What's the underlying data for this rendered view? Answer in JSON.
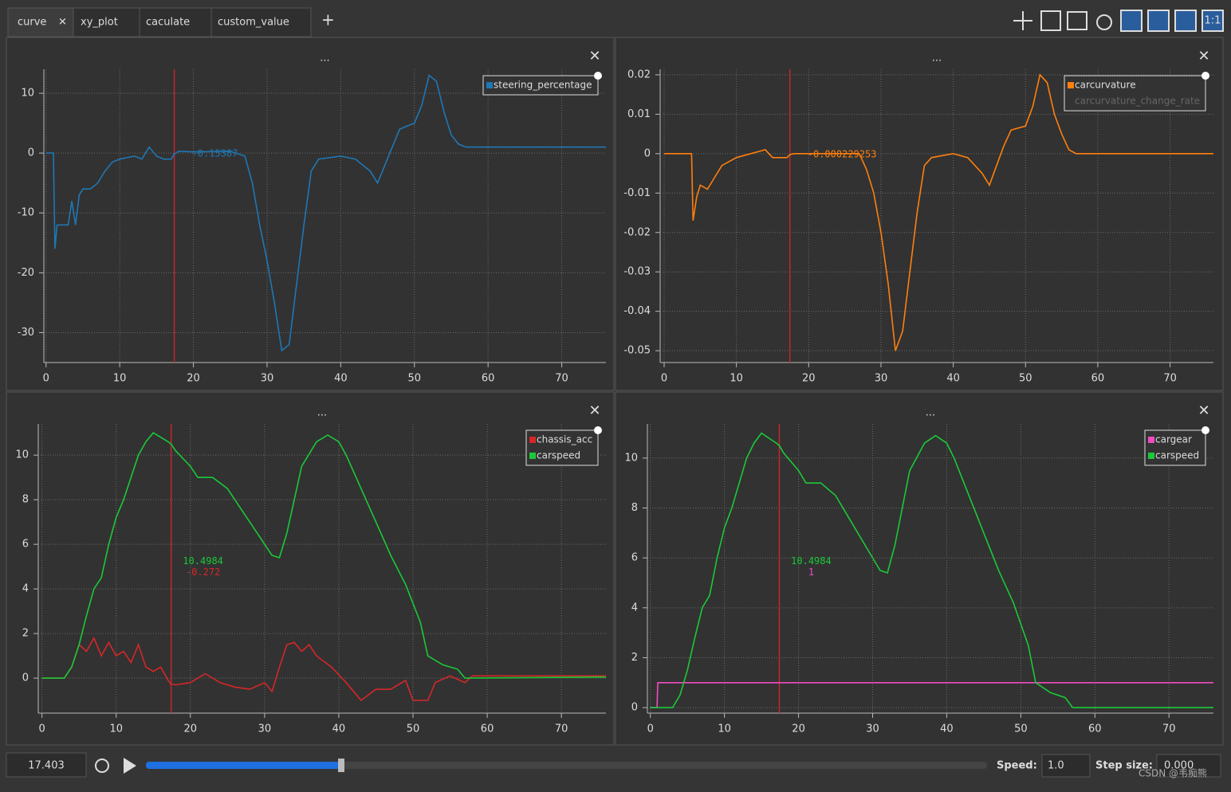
{
  "tabs": [
    "curve",
    "xy_plot",
    "caculate",
    "custom_value"
  ],
  "toolbar": {
    "ratio_button": "1:1"
  },
  "panel_title": "...",
  "chart_data": [
    {
      "type": "line",
      "xlim": [
        -0.3,
        76
      ],
      "xticks": [
        0,
        10,
        20,
        30,
        40,
        50,
        60,
        70
      ],
      "ylim": [
        -35,
        14
      ],
      "yticks": [
        -30,
        -20,
        -10,
        0,
        10
      ],
      "grid": true,
      "legend": "upper right",
      "cursor": 17.403,
      "tracker_labels": [
        "-0.15387"
      ],
      "series": [
        {
          "name": "steering_percentage",
          "color": "#1f77b4",
          "x": [
            0,
            1,
            1.2,
            1.5,
            3,
            3.5,
            4,
            4.5,
            5,
            6,
            7,
            8,
            9,
            10,
            12,
            13,
            14,
            15,
            16,
            17,
            17.4,
            18,
            20,
            25,
            27,
            28,
            29,
            30,
            31,
            32,
            33,
            34,
            35,
            36,
            37,
            40,
            42,
            44,
            45,
            46,
            47,
            48,
            49,
            50,
            51,
            52,
            53,
            54,
            55,
            56,
            57,
            76
          ],
          "values": [
            0,
            0,
            -16,
            -12,
            -12,
            -8,
            -12,
            -7,
            -6,
            -6,
            -5,
            -3,
            -1.5,
            -1,
            -0.5,
            -1,
            1,
            -0.5,
            -1,
            -1,
            -0.15,
            0.3,
            0.2,
            0.3,
            -0.5,
            -5,
            -12,
            -18,
            -25,
            -33,
            -32,
            -22,
            -12,
            -3,
            -1,
            -0.5,
            -1,
            -3,
            -5,
            -2,
            1,
            4,
            4.5,
            5,
            8,
            13,
            12,
            7,
            3,
            1.5,
            1,
            1
          ]
        }
      ]
    },
    {
      "type": "line",
      "xlim": [
        -0.55,
        76
      ],
      "xticks": [
        0,
        10,
        20,
        30,
        40,
        50,
        60,
        70
      ],
      "ylim": [
        -0.053,
        0.0214
      ],
      "yticks": [
        -0.05,
        -0.04,
        -0.03,
        -0.02,
        -0.01,
        0,
        0.01,
        0.02
      ],
      "grid": true,
      "legend": "upper right",
      "cursor": 17.403,
      "tracker_labels": [
        "-0.000229253"
      ],
      "inactive_legend": [
        "carcurvature_change_rate"
      ],
      "series": [
        {
          "name": "carcurvature",
          "color": "#ff7f0e",
          "x": [
            0,
            3.8,
            4,
            4.5,
            5,
            6,
            7,
            8,
            9,
            10,
            14,
            15,
            17,
            17.4,
            18,
            20,
            27,
            28,
            29,
            30,
            31,
            32,
            33,
            34,
            35,
            36,
            37,
            40,
            42,
            44,
            45,
            46,
            47,
            48,
            50,
            51,
            52,
            53,
            54,
            55,
            56,
            57,
            76
          ],
          "values": [
            0,
            0,
            -0.017,
            -0.011,
            -0.008,
            -0.009,
            -0.006,
            -0.003,
            -0.002,
            -0.001,
            0.001,
            -0.001,
            -0.001,
            -0.00023,
            0,
            0,
            0,
            -0.004,
            -0.01,
            -0.02,
            -0.033,
            -0.05,
            -0.045,
            -0.03,
            -0.015,
            -0.003,
            -0.001,
            0,
            -0.001,
            -0.005,
            -0.008,
            -0.003,
            0.002,
            0.006,
            0.007,
            0.012,
            0.02,
            0.018,
            0.01,
            0.005,
            0.001,
            0,
            0
          ]
        }
      ]
    },
    {
      "type": "line",
      "xlim": [
        -0.5,
        76
      ],
      "xticks": [
        0,
        10,
        20,
        30,
        40,
        50,
        60,
        70
      ],
      "ylim": [
        -1.57,
        11.4
      ],
      "yticks": [
        0,
        2,
        4,
        6,
        8,
        10
      ],
      "grid": true,
      "legend": "upper right",
      "cursor": 17.403,
      "tracker_labels": [
        "10.4984",
        "-0.272"
      ],
      "series": [
        {
          "name": "chassis_acc",
          "color": "#d62728",
          "x": [
            0,
            3,
            4,
            5,
            6,
            7,
            8,
            9,
            10,
            11,
            12,
            13,
            14,
            15,
            16,
            17,
            17.4,
            18,
            20,
            22,
            24,
            26,
            28,
            30,
            31,
            32,
            33,
            34,
            35,
            36,
            37,
            39,
            41,
            43,
            45,
            47,
            49,
            50,
            52,
            53,
            55,
            57,
            58,
            76
          ],
          "values": [
            0,
            0,
            0.5,
            1.5,
            1.2,
            1.8,
            1,
            1.6,
            1,
            1.2,
            0.7,
            1.5,
            0.5,
            0.3,
            0.5,
            -0.1,
            -0.27,
            -0.3,
            -0.2,
            0.2,
            -0.2,
            -0.4,
            -0.5,
            -0.2,
            -0.6,
            0.5,
            1.5,
            1.6,
            1.2,
            1.5,
            1,
            0.5,
            -0.2,
            -1,
            -0.5,
            -0.5,
            -0.1,
            -1,
            -1,
            -0.2,
            0.1,
            -0.2,
            0.1,
            0.1
          ]
        },
        {
          "name": "carspeed",
          "color": "#1ac938",
          "x": [
            0,
            3,
            4,
            5,
            6,
            7,
            8,
            9,
            10,
            11,
            12,
            13,
            14,
            15,
            16,
            17,
            17.4,
            18,
            20,
            21,
            23,
            25,
            27,
            29,
            31,
            32,
            33,
            34,
            35,
            37,
            38.5,
            40,
            41,
            43,
            45,
            47,
            49,
            51,
            52,
            54,
            56,
            57,
            76
          ],
          "values": [
            0,
            0,
            0.5,
            1.5,
            2.8,
            4,
            4.5,
            6,
            7.2,
            8,
            9,
            10,
            10.6,
            11,
            10.8,
            10.6,
            10.5,
            10.2,
            9.5,
            9,
            9,
            8.5,
            7.5,
            6.5,
            5.5,
            5.4,
            6.5,
            8,
            9.5,
            10.6,
            10.9,
            10.6,
            10,
            8.5,
            7,
            5.5,
            4.2,
            2.5,
            1,
            0.6,
            0.4,
            0,
            0.05
          ]
        }
      ]
    },
    {
      "type": "line",
      "xlim": [
        -0.4,
        76
      ],
      "xticks": [
        0,
        10,
        20,
        30,
        40,
        50,
        60,
        70
      ],
      "ylim": [
        -0.22,
        11.37
      ],
      "yticks": [
        0,
        2,
        4,
        6,
        8,
        10
      ],
      "grid": true,
      "legend": "upper right",
      "cursor": 17.403,
      "tracker_labels": [
        "10.4984",
        "1"
      ],
      "series": [
        {
          "name": "cargear",
          "color": "#f14cc1",
          "x": [
            0,
            0.9,
            1,
            76
          ],
          "values": [
            0,
            0,
            1,
            1
          ]
        },
        {
          "name": "carspeed",
          "color": "#1ac938",
          "x": [
            0,
            3,
            4,
            5,
            6,
            7,
            8,
            9,
            10,
            11,
            12,
            13,
            14,
            15,
            16,
            17,
            17.4,
            18,
            20,
            21,
            23,
            25,
            27,
            29,
            31,
            32,
            33,
            34,
            35,
            37,
            38.5,
            40,
            41,
            43,
            45,
            47,
            49,
            51,
            52,
            54,
            56,
            57,
            76
          ],
          "values": [
            0,
            0,
            0.5,
            1.5,
            2.8,
            4,
            4.5,
            6,
            7.2,
            8,
            9,
            10,
            10.6,
            11,
            10.8,
            10.6,
            10.5,
            10.2,
            9.5,
            9,
            9,
            8.5,
            7.5,
            6.5,
            5.5,
            5.4,
            6.5,
            8,
            9.5,
            10.6,
            10.9,
            10.6,
            10,
            8.5,
            7,
            5.5,
            4.2,
            2.5,
            1,
            0.6,
            0.4,
            0,
            0
          ]
        }
      ]
    }
  ],
  "playback": {
    "time": "17.403",
    "speed_label": "Speed:",
    "speed": "1.0",
    "step_label": "Step size:",
    "step": "0.000"
  },
  "watermark": "CSDN @韦痴熊"
}
